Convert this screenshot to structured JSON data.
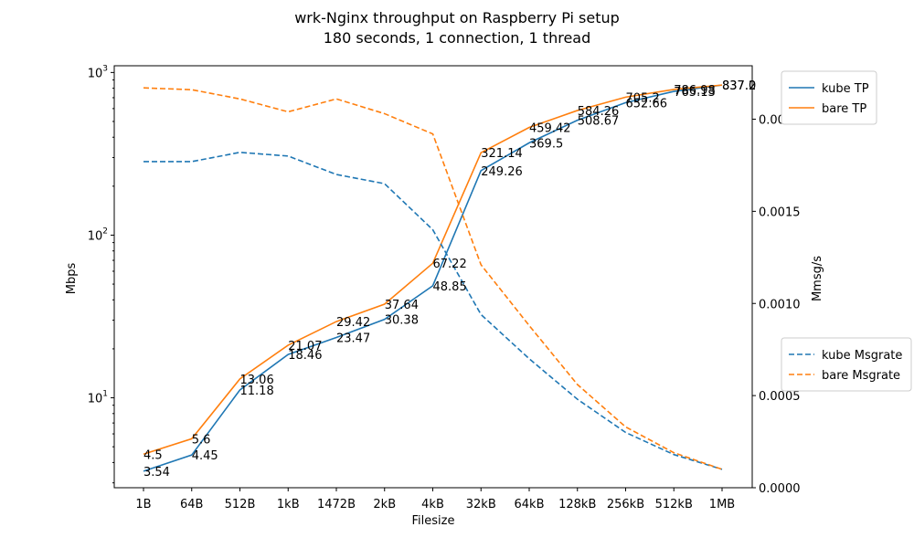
{
  "chart_data": {
    "type": "line",
    "title": "wrk-Nginx throughput on Raspberry Pi setup",
    "subtitle": "180 seconds, 1 connection, 1 thread",
    "xlabel": "Filesize",
    "ylabel_left": "Mbps",
    "ylabel_right": "Mmsg/s",
    "categories": [
      "1B",
      "64B",
      "512B",
      "1kB",
      "1472B",
      "2kB",
      "4kB",
      "32kB",
      "64kB",
      "128kB",
      "256kB",
      "512kB",
      "1MB"
    ],
    "y_left_scale": "log",
    "y_left_range": [
      2.8,
      1100
    ],
    "y_left_ticks": [
      {
        "value": 10,
        "base": "10",
        "exp": "1"
      },
      {
        "value": 100,
        "base": "10",
        "exp": "2"
      },
      {
        "value": 1000,
        "base": "10",
        "exp": "3"
      }
    ],
    "y_right_range": [
      0,
      0.00229
    ],
    "y_right_ticks": [
      "0.0000",
      "0.0005",
      "0.0010",
      "0.0015",
      "0.0020"
    ],
    "grid": false,
    "legend_placement": "outside-right",
    "series": [
      {
        "name": "kube TP",
        "axis": "left",
        "style": "solid",
        "color": "#1f77b4",
        "values": [
          3.54,
          4.45,
          11.18,
          18.46,
          23.47,
          30.38,
          48.85,
          249.26,
          369.5,
          508.67,
          652.66,
          765.13,
          837.0
        ],
        "labels": [
          "3.54",
          "4.45",
          "11.18",
          "18.46",
          "23.47",
          "30.38",
          "48.85",
          "249.26",
          "369.5",
          "508.67",
          "652.66",
          "765.13",
          "837.0"
        ]
      },
      {
        "name": "bare TP",
        "axis": "left",
        "style": "solid",
        "color": "#ff7f0e",
        "values": [
          4.5,
          5.6,
          13.06,
          21.07,
          29.42,
          37.64,
          67.22,
          321.14,
          459.42,
          584.26,
          705.2,
          786.98,
          837.2
        ],
        "labels": [
          "4.5",
          "5.6",
          "13.06",
          "21.07",
          "29.42",
          "37.64",
          "67.22",
          "321.14",
          "459.42",
          "584.26",
          "705.2",
          "786.98",
          "837.2"
        ]
      },
      {
        "name": "kube Msgrate",
        "axis": "right",
        "style": "dashed",
        "color": "#1f77b4",
        "values": [
          0.00177,
          0.00177,
          0.00182,
          0.0018,
          0.0017,
          0.00165,
          0.0014,
          0.00094,
          0.0007,
          0.00048,
          0.0003,
          0.00018,
          0.0001
        ]
      },
      {
        "name": "bare Msgrate",
        "axis": "right",
        "style": "dashed",
        "color": "#ff7f0e",
        "values": [
          0.00217,
          0.00216,
          0.00211,
          0.00204,
          0.00211,
          0.00203,
          0.00192,
          0.00121,
          0.00088,
          0.00056,
          0.00033,
          0.00019,
          0.0001
        ]
      }
    ]
  }
}
